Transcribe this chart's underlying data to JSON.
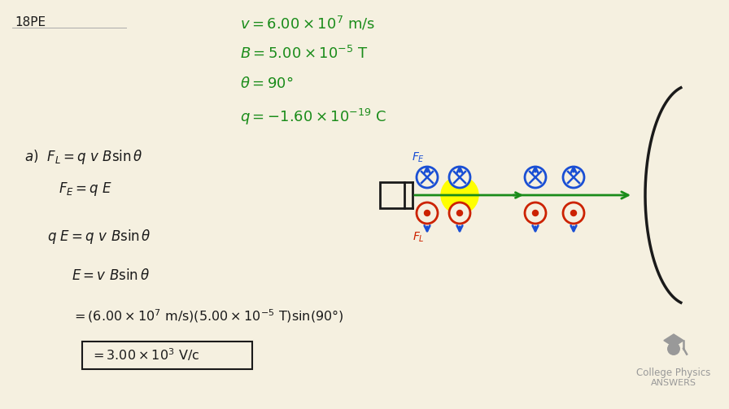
{
  "background_color": "#f5f0e0",
  "title_label": "18PE",
  "green_color": "#1a8c1a",
  "blue_color": "#1a4fd4",
  "red_color": "#cc2200",
  "black_color": "#1a1a1a",
  "gray_color": "#999999",
  "yellow_color": "#ffff00",
  "logo_text_line1": "College Physics",
  "logo_text_line2": "ANSWERS"
}
